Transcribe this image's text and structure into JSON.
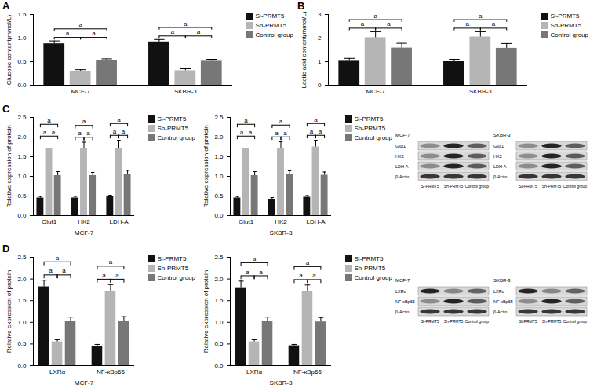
{
  "chart_data": [
    {
      "panel": "A",
      "type": "bar",
      "y_label": "Glucose content(mmol/L)",
      "categories": [
        "MCF-7",
        "SKBR-3"
      ],
      "series": [
        {
          "name": "Si-PRMT5",
          "color": "#111111",
          "values": [
            0.88,
            0.92
          ],
          "errors": [
            0.06,
            0.05
          ]
        },
        {
          "name": "Sh-PRMT5",
          "color": "#b5b5b5",
          "values": [
            0.3,
            0.31
          ],
          "errors": [
            0.03,
            0.04
          ]
        },
        {
          "name": "Control group",
          "color": "#777777",
          "values": [
            0.52,
            0.51
          ],
          "errors": [
            0.04,
            0.04
          ]
        }
      ],
      "ylim": [
        0,
        1.5
      ],
      "yticks": [
        {
          "value": 0,
          "label": "0.0"
        },
        0.5,
        {
          "value": 1,
          "label": "1.0"
        },
        1.5
      ],
      "legend": "right",
      "significance": {
        "label": "a",
        "pairs": [
          [
            "Si-PRMT5",
            "Sh-PRMT5"
          ],
          [
            "Sh-PRMT5",
            "Control group"
          ],
          [
            "Si-PRMT5",
            "Control group"
          ]
        ]
      }
    },
    {
      "panel": "B",
      "type": "bar",
      "y_label": "Lactic acid content(mmol/L)",
      "categories": [
        "MCF-7",
        "SKBR-3"
      ],
      "series": [
        {
          "name": "Si-PRMT5",
          "color": "#111111",
          "values": [
            1.02,
            1.0
          ],
          "errors": [
            0.12,
            0.1
          ]
        },
        {
          "name": "Sh-PRMT5",
          "color": "#b5b5b5",
          "values": [
            2.02,
            2.05
          ],
          "errors": [
            0.25,
            0.22
          ]
        },
        {
          "name": "Control group",
          "color": "#777777",
          "values": [
            1.58,
            1.57
          ],
          "errors": [
            0.2,
            0.2
          ]
        }
      ],
      "ylim": [
        0,
        3
      ],
      "yticks": [
        0,
        1,
        2,
        3
      ],
      "legend": "right",
      "significance": {
        "label": "a",
        "pairs": [
          [
            "Si-PRMT5",
            "Sh-PRMT5"
          ],
          [
            "Sh-PRMT5",
            "Control group"
          ],
          [
            "Si-PRMT5",
            "Control group"
          ]
        ]
      }
    },
    {
      "panel": "C",
      "type": "bar",
      "y_label": "Relative expression of protein",
      "x_label": "MCF-7",
      "categories": [
        "Glut1",
        "HK2",
        "LDH-A"
      ],
      "series": [
        {
          "name": "Si-PRMT5",
          "color": "#111111",
          "values": [
            0.45,
            0.45,
            0.48
          ],
          "errors": [
            0.04,
            0.04,
            0.04
          ]
        },
        {
          "name": "Sh-PRMT5",
          "color": "#b5b5b5",
          "values": [
            1.72,
            1.7,
            1.72
          ],
          "errors": [
            0.18,
            0.17,
            0.2
          ]
        },
        {
          "name": "Control group",
          "color": "#777777",
          "values": [
            1.02,
            1.02,
            1.05
          ],
          "errors": [
            0.1,
            0.08,
            0.1
          ]
        }
      ],
      "ylim": [
        0,
        2.5
      ],
      "yticks": [
        {
          "value": 0,
          "label": "0.0"
        },
        0.5,
        {
          "value": 1,
          "label": "1.0"
        },
        1.5,
        {
          "value": 2,
          "label": "2.0"
        },
        2.5
      ],
      "legend": "right",
      "significance": {
        "label": "a",
        "pairs": [
          [
            "Si-PRMT5",
            "Sh-PRMT5"
          ],
          [
            "Sh-PRMT5",
            "Control group"
          ],
          [
            "Si-PRMT5",
            "Control group"
          ]
        ]
      }
    },
    {
      "type": "bar",
      "y_label": "Relative expression of protein",
      "x_label": "SKBR-3",
      "categories": [
        "Glut1",
        "HK2",
        "LDH-A"
      ],
      "series": [
        {
          "name": "Si-PRMT5",
          "color": "#111111",
          "values": [
            0.45,
            0.42,
            0.47
          ],
          "errors": [
            0.04,
            0.04,
            0.04
          ]
        },
        {
          "name": "Sh-PRMT5",
          "color": "#b5b5b5",
          "values": [
            1.72,
            1.7,
            1.75
          ],
          "errors": [
            0.18,
            0.18,
            0.17
          ]
        },
        {
          "name": "Control group",
          "color": "#777777",
          "values": [
            1.02,
            1.05,
            1.03
          ],
          "errors": [
            0.1,
            0.09,
            0.08
          ]
        }
      ],
      "ylim": [
        0,
        2.5
      ],
      "yticks": [
        {
          "value": 0,
          "label": "0.0"
        },
        0.5,
        {
          "value": 1,
          "label": "1.0"
        },
        1.5,
        {
          "value": 2,
          "label": "2.0"
        },
        2.5
      ],
      "legend": "right",
      "significance": {
        "label": "a",
        "pairs": [
          [
            "Si-PRMT5",
            "Sh-PRMT5"
          ],
          [
            "Sh-PRMT5",
            "Control group"
          ],
          [
            "Si-PRMT5",
            "Control group"
          ]
        ]
      }
    },
    {
      "panel": "D",
      "type": "bar",
      "y_label": "Relative expression of protein",
      "x_label": "MCF-7",
      "categories": [
        "LXRα",
        "NF-κBp65"
      ],
      "series": [
        {
          "name": "Si-PRMT5",
          "color": "#111111",
          "values": [
            1.82,
            0.45
          ],
          "errors": [
            0.15,
            0.04
          ]
        },
        {
          "name": "Sh-PRMT5",
          "color": "#b5b5b5",
          "values": [
            0.55,
            1.72
          ],
          "errors": [
            0.05,
            0.15
          ]
        },
        {
          "name": "Control group",
          "color": "#777777",
          "values": [
            1.02,
            1.03
          ],
          "errors": [
            0.1,
            0.1
          ]
        }
      ],
      "ylim": [
        0,
        2.5
      ],
      "yticks": [
        {
          "value": 0,
          "label": "0.0"
        },
        0.5,
        {
          "value": 1,
          "label": "1.0"
        },
        1.5,
        {
          "value": 2,
          "label": "2.0"
        },
        2.5
      ],
      "legend": "right",
      "significance": {
        "label": "a",
        "pairs": [
          [
            "Si-PRMT5",
            "Sh-PRMT5"
          ],
          [
            "Sh-PRMT5",
            "Control group"
          ],
          [
            "Si-PRMT5",
            "Control group"
          ]
        ]
      }
    },
    {
      "type": "bar",
      "y_label": "Relative expression of protein",
      "x_label": "SKBR-3",
      "categories": [
        "LXRα",
        "NF-κBp65"
      ],
      "series": [
        {
          "name": "Si-PRMT5",
          "color": "#111111",
          "values": [
            1.8,
            0.46
          ],
          "errors": [
            0.15,
            0.03
          ]
        },
        {
          "name": "Sh-PRMT5",
          "color": "#b5b5b5",
          "values": [
            0.55,
            1.72
          ],
          "errors": [
            0.05,
            0.14
          ]
        },
        {
          "name": "Control group",
          "color": "#777777",
          "values": [
            1.02,
            1.01
          ],
          "errors": [
            0.1,
            0.1
          ]
        }
      ],
      "ylim": [
        0,
        2.5
      ],
      "yticks": [
        {
          "value": 0,
          "label": "0.0"
        },
        0.5,
        {
          "value": 1,
          "label": "1.0"
        },
        1.5,
        {
          "value": 2,
          "label": "2.0"
        },
        2.5
      ],
      "legend": "right",
      "significance": {
        "label": "a",
        "pairs": [
          [
            "Si-PRMT5",
            "Sh-PRMT5"
          ],
          [
            "Sh-PRMT5",
            "Control group"
          ],
          [
            "Si-PRMT5",
            "Control group"
          ]
        ]
      }
    }
  ],
  "blots": [
    {
      "cell_line": "MCF-7",
      "rows": [
        "Glut1",
        "HK2",
        "LDH-A",
        "β-Actin"
      ],
      "columns": [
        "Si-PRMT5",
        "Sh-PRMT5",
        "Control group"
      ]
    },
    {
      "cell_line": "SKBR-3",
      "rows": [
        "Glut1",
        "HK2",
        "LDH-A",
        "β-Actin"
      ],
      "columns": [
        "Si-PRMT5",
        "Sh-PRMT5",
        "Control group"
      ]
    },
    {
      "cell_line": "MCF-7",
      "rows": [
        "LXRα",
        "NF-κBp65",
        "β-Actin"
      ],
      "columns": [
        "Si-PRMT5",
        "Sh-PRMT5",
        "Control group"
      ]
    },
    {
      "cell_line": "SKBR-3",
      "rows": [
        "LXRα",
        "NF-κBp65",
        "β-Actin"
      ],
      "columns": [
        "Si-PRMT5",
        "Sh-PRMT5",
        "Control group"
      ]
    }
  ]
}
